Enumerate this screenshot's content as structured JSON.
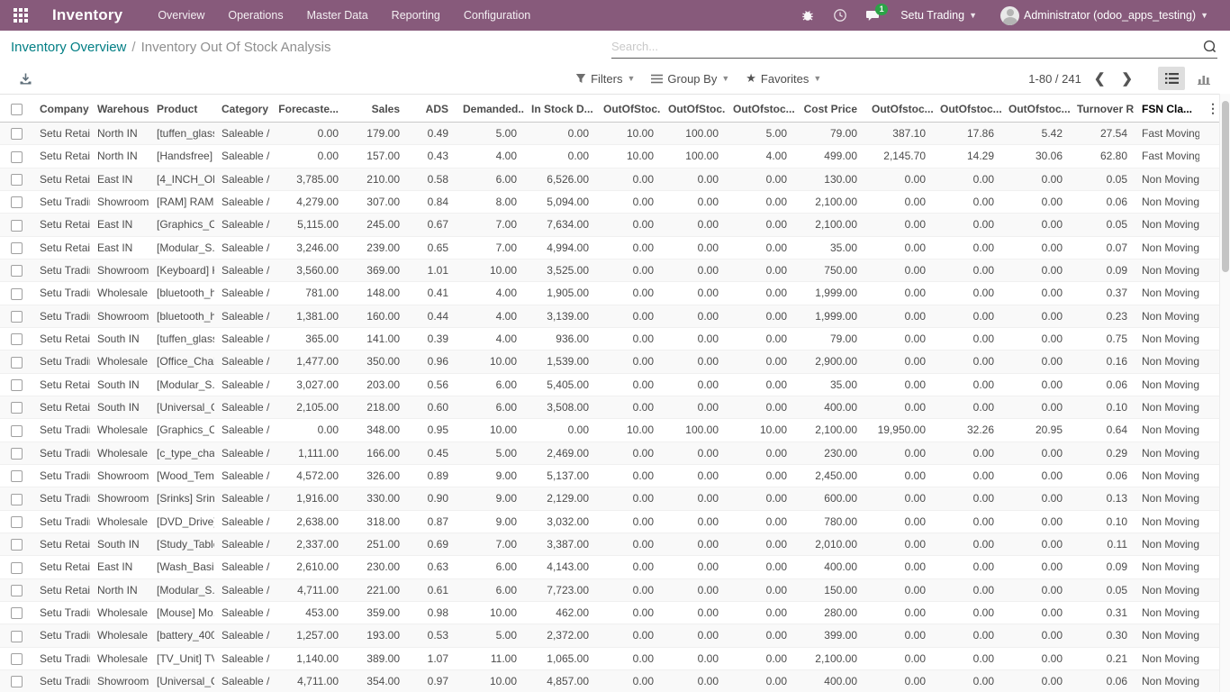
{
  "navbar": {
    "app_name": "Inventory",
    "menus": [
      "Overview",
      "Operations",
      "Master Data",
      "Reporting",
      "Configuration"
    ],
    "message_badge": "1",
    "company": "Setu Trading",
    "user": "Administrator (odoo_apps_testing)"
  },
  "breadcrumb": {
    "parent": "Inventory Overview",
    "separator": "/",
    "current": "Inventory Out Of Stock Analysis"
  },
  "search": {
    "placeholder": "Search..."
  },
  "controls": {
    "filters_label": "Filters",
    "group_by_label": "Group By",
    "favorites_label": "Favorites",
    "pager": "1-80 / 241",
    "prev": "❮",
    "next": "❯",
    "more_menu": "⋮"
  },
  "colors": {
    "navbar": "#875A7B",
    "breadcrumb_link": "#017e84",
    "badge": "#28a745",
    "row_stripe": "#f9f9f9"
  },
  "table": {
    "headers": [
      "Company",
      "Warehouse",
      "Product",
      "Category",
      "Forecaste...",
      "Sales",
      "ADS",
      "Demanded...",
      "In Stock D...",
      "OutOfStoc...",
      "OutOfStoc...",
      "OutOfstoc...",
      "Cost Price",
      "OutOfstoc...",
      "OutOfstoc...",
      "OutOfstoc...",
      "Turnover R...",
      "FSN Cla..."
    ],
    "rows": [
      [
        "Setu Retail",
        "North IN",
        "[tuffen_glass...",
        "Saleable / M...",
        "0.00",
        "179.00",
        "0.49",
        "5.00",
        "0.00",
        "10.00",
        "100.00",
        "5.00",
        "79.00",
        "387.10",
        "17.86",
        "5.42",
        "27.54",
        "Fast Moving"
      ],
      [
        "Setu Retail",
        "North IN",
        "[Handsfree] ...",
        "Saleable / M...",
        "0.00",
        "157.00",
        "0.43",
        "4.00",
        "0.00",
        "10.00",
        "100.00",
        "4.00",
        "499.00",
        "2,145.70",
        "14.29",
        "30.06",
        "62.80",
        "Fast Moving"
      ],
      [
        "Setu Retail",
        "East IN",
        "[4_INCH_ON...",
        "Saleable / Pl...",
        "3,785.00",
        "210.00",
        "0.58",
        "6.00",
        "6,526.00",
        "0.00",
        "0.00",
        "0.00",
        "130.00",
        "0.00",
        "0.00",
        "0.00",
        "0.05",
        "Non Moving"
      ],
      [
        "Setu Trading",
        "Showroom",
        "[RAM] RAM",
        "Saleable / C...",
        "4,279.00",
        "307.00",
        "0.84",
        "8.00",
        "5,094.00",
        "0.00",
        "0.00",
        "0.00",
        "2,100.00",
        "0.00",
        "0.00",
        "0.00",
        "0.06",
        "Non Moving"
      ],
      [
        "Setu Retail",
        "East IN",
        "[Graphics_C...",
        "Saleable / C...",
        "5,115.00",
        "245.00",
        "0.67",
        "7.00",
        "7,634.00",
        "0.00",
        "0.00",
        "0.00",
        "2,100.00",
        "0.00",
        "0.00",
        "0.00",
        "0.05",
        "Non Moving"
      ],
      [
        "Setu Retail",
        "East IN",
        "[Modular_S...",
        "Saleable / El...",
        "3,246.00",
        "239.00",
        "0.65",
        "7.00",
        "4,994.00",
        "0.00",
        "0.00",
        "0.00",
        "35.00",
        "0.00",
        "0.00",
        "0.00",
        "0.07",
        "Non Moving"
      ],
      [
        "Setu Trading",
        "Showroom",
        "[Keyboard] K...",
        "Saleable / C...",
        "3,560.00",
        "369.00",
        "1.01",
        "10.00",
        "3,525.00",
        "0.00",
        "0.00",
        "0.00",
        "750.00",
        "0.00",
        "0.00",
        "0.00",
        "0.09",
        "Non Moving"
      ],
      [
        "Setu Trading",
        "Wholesale",
        "[bluetooth_h...",
        "Saleable / M...",
        "781.00",
        "148.00",
        "0.41",
        "4.00",
        "1,905.00",
        "0.00",
        "0.00",
        "0.00",
        "1,999.00",
        "0.00",
        "0.00",
        "0.00",
        "0.37",
        "Non Moving"
      ],
      [
        "Setu Trading",
        "Showroom",
        "[bluetooth_h...",
        "Saleable / M...",
        "1,381.00",
        "160.00",
        "0.44",
        "4.00",
        "3,139.00",
        "0.00",
        "0.00",
        "0.00",
        "1,999.00",
        "0.00",
        "0.00",
        "0.00",
        "0.23",
        "Non Moving"
      ],
      [
        "Setu Retail",
        "South IN",
        "[tuffen_glass...",
        "Saleable / M...",
        "365.00",
        "141.00",
        "0.39",
        "4.00",
        "936.00",
        "0.00",
        "0.00",
        "0.00",
        "79.00",
        "0.00",
        "0.00",
        "0.00",
        "0.75",
        "Non Moving"
      ],
      [
        "Setu Trading",
        "Wholesale",
        "[Office_Chair...",
        "Saleable / F...",
        "1,477.00",
        "350.00",
        "0.96",
        "10.00",
        "1,539.00",
        "0.00",
        "0.00",
        "0.00",
        "2,900.00",
        "0.00",
        "0.00",
        "0.00",
        "0.16",
        "Non Moving"
      ],
      [
        "Setu Retail",
        "South IN",
        "[Modular_S...",
        "Saleable / El...",
        "3,027.00",
        "203.00",
        "0.56",
        "6.00",
        "5,405.00",
        "0.00",
        "0.00",
        "0.00",
        "35.00",
        "0.00",
        "0.00",
        "0.00",
        "0.06",
        "Non Moving"
      ],
      [
        "Setu Retail",
        "South IN",
        "[Universal_C...",
        "Saleable / El...",
        "2,105.00",
        "218.00",
        "0.60",
        "6.00",
        "3,508.00",
        "0.00",
        "0.00",
        "0.00",
        "400.00",
        "0.00",
        "0.00",
        "0.00",
        "0.10",
        "Non Moving"
      ],
      [
        "Setu Trading",
        "Wholesale",
        "[Graphics_C...",
        "Saleable / C...",
        "0.00",
        "348.00",
        "0.95",
        "10.00",
        "0.00",
        "10.00",
        "100.00",
        "10.00",
        "2,100.00",
        "19,950.00",
        "32.26",
        "20.95",
        "0.64",
        "Non Moving"
      ],
      [
        "Setu Trading",
        "Wholesale",
        "[c_type_char...",
        "Saleable / M...",
        "1,111.00",
        "166.00",
        "0.45",
        "5.00",
        "2,469.00",
        "0.00",
        "0.00",
        "0.00",
        "230.00",
        "0.00",
        "0.00",
        "0.00",
        "0.29",
        "Non Moving"
      ],
      [
        "Setu Trading",
        "Showroom",
        "[Wood_Tem...",
        "Saleable / F...",
        "4,572.00",
        "326.00",
        "0.89",
        "9.00",
        "5,137.00",
        "0.00",
        "0.00",
        "0.00",
        "2,450.00",
        "0.00",
        "0.00",
        "0.00",
        "0.06",
        "Non Moving"
      ],
      [
        "Setu Trading",
        "Showroom",
        "[Srinks] Srinks",
        "Saleable / Pl...",
        "1,916.00",
        "330.00",
        "0.90",
        "9.00",
        "2,129.00",
        "0.00",
        "0.00",
        "0.00",
        "600.00",
        "0.00",
        "0.00",
        "0.00",
        "0.13",
        "Non Moving"
      ],
      [
        "Setu Trading",
        "Wholesale",
        "[DVD_Drive] ...",
        "Saleable / C...",
        "2,638.00",
        "318.00",
        "0.87",
        "9.00",
        "3,032.00",
        "0.00",
        "0.00",
        "0.00",
        "780.00",
        "0.00",
        "0.00",
        "0.00",
        "0.10",
        "Non Moving"
      ],
      [
        "Setu Retail",
        "South IN",
        "[Study_Table...",
        "Saleable / F...",
        "2,337.00",
        "251.00",
        "0.69",
        "7.00",
        "3,387.00",
        "0.00",
        "0.00",
        "0.00",
        "2,010.00",
        "0.00",
        "0.00",
        "0.00",
        "0.11",
        "Non Moving"
      ],
      [
        "Setu Retail",
        "East IN",
        "[Wash_Basin...",
        "Saleable / Pl...",
        "2,610.00",
        "230.00",
        "0.63",
        "6.00",
        "4,143.00",
        "0.00",
        "0.00",
        "0.00",
        "400.00",
        "0.00",
        "0.00",
        "0.00",
        "0.09",
        "Non Moving"
      ],
      [
        "Setu Retail",
        "North IN",
        "[Modular_S...",
        "Saleable / El...",
        "4,711.00",
        "221.00",
        "0.61",
        "6.00",
        "7,723.00",
        "0.00",
        "0.00",
        "0.00",
        "150.00",
        "0.00",
        "0.00",
        "0.00",
        "0.05",
        "Non Moving"
      ],
      [
        "Setu Trading",
        "Wholesale",
        "[Mouse] Mo...",
        "Saleable / C...",
        "453.00",
        "359.00",
        "0.98",
        "10.00",
        "462.00",
        "0.00",
        "0.00",
        "0.00",
        "280.00",
        "0.00",
        "0.00",
        "0.00",
        "0.31",
        "Non Moving"
      ],
      [
        "Setu Trading",
        "Wholesale",
        "[battery_400...",
        "Saleable / M...",
        "1,257.00",
        "193.00",
        "0.53",
        "5.00",
        "2,372.00",
        "0.00",
        "0.00",
        "0.00",
        "399.00",
        "0.00",
        "0.00",
        "0.00",
        "0.30",
        "Non Moving"
      ],
      [
        "Setu Trading",
        "Wholesale",
        "[TV_Unit] TV ...",
        "Saleable / F...",
        "1,140.00",
        "389.00",
        "1.07",
        "11.00",
        "1,065.00",
        "0.00",
        "0.00",
        "0.00",
        "2,100.00",
        "0.00",
        "0.00",
        "0.00",
        "0.21",
        "Non Moving"
      ],
      [
        "Setu Trading",
        "Showroom",
        "[Universal_C...",
        "Saleable / El...",
        "4,711.00",
        "354.00",
        "0.97",
        "10.00",
        "4,857.00",
        "0.00",
        "0.00",
        "0.00",
        "400.00",
        "0.00",
        "0.00",
        "0.00",
        "0.06",
        "Non Moving"
      ]
    ]
  }
}
